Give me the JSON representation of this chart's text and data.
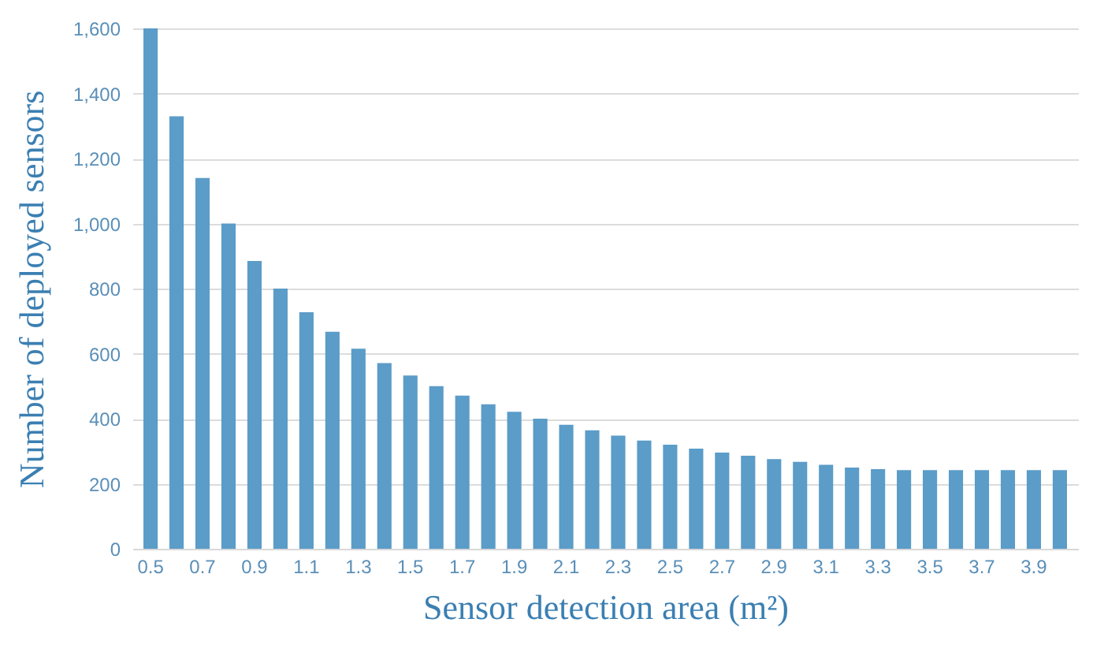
{
  "chart_data": {
    "type": "bar",
    "xlabel": "Sensor detection area (m²)",
    "ylabel": "Number of deployed sensors",
    "categories": [
      "0.5",
      null,
      "0.7",
      null,
      "0.9",
      null,
      "1.1",
      null,
      "1.3",
      null,
      "1.5",
      null,
      "1.7",
      null,
      "1.9",
      null,
      "2.1",
      null,
      "2.3",
      null,
      "2.5",
      null,
      "2.7",
      null,
      "2.9",
      null,
      "3.1",
      null,
      "3.3",
      null,
      "3.5",
      null,
      "3.7",
      null,
      "3.9",
      null
    ],
    "values": [
      1600,
      1330,
      1140,
      1000,
      885,
      800,
      727,
      667,
      615,
      571,
      533,
      500,
      471,
      444,
      421,
      400,
      381,
      364,
      348,
      333,
      320,
      308,
      296,
      286,
      276,
      267,
      258,
      250,
      245,
      242,
      242,
      242,
      242,
      242,
      242,
      242
    ],
    "color": "#5b9cc8",
    "ylim": [
      0,
      1600
    ],
    "yticks": [
      0,
      {
        "value": 200,
        "label": "200"
      },
      {
        "value": 400,
        "label": "400"
      },
      {
        "value": 600,
        "label": "600"
      },
      {
        "value": 800,
        "label": "800"
      },
      {
        "value": 1000,
        "label": "1,000"
      },
      {
        "value": 1200,
        "label": "1,200"
      },
      {
        "value": 1400,
        "label": "1,400"
      },
      {
        "value": 1600,
        "label": "1,600"
      }
    ],
    "grid": true
  }
}
